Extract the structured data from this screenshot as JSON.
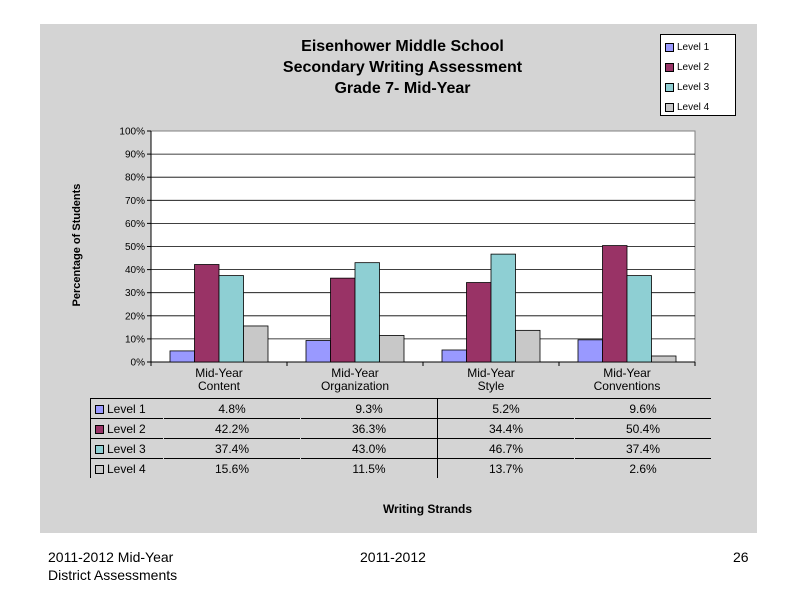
{
  "chart_data": {
    "type": "bar",
    "title": [
      "Eisenhower Middle School",
      "Secondary Writing Assessment",
      "Grade 7- Mid-Year"
    ],
    "ylabel": "Percentage of Students",
    "xlabel": "Writing Strands",
    "ylim": [
      0,
      100
    ],
    "yticks": [
      "0%",
      "10%",
      "20%",
      "30%",
      "40%",
      "50%",
      "60%",
      "70%",
      "80%",
      "90%",
      "100%"
    ],
    "grid": true,
    "legend_position": "top-right",
    "categories": [
      [
        "Mid-Year",
        "Content"
      ],
      [
        "Mid-Year",
        "Organization"
      ],
      [
        "Mid-Year",
        "Style"
      ],
      [
        "Mid-Year",
        "Conventions"
      ]
    ],
    "series": [
      {
        "name": "Level 1",
        "color": "#9999ff",
        "values": [
          4.8,
          9.3,
          5.2,
          9.6
        ],
        "labels": [
          "4.8%",
          "9.3%",
          "5.2%",
          "9.6%"
        ]
      },
      {
        "name": "Level 2",
        "color": "#993366",
        "values": [
          42.2,
          36.3,
          34.4,
          50.4
        ],
        "labels": [
          "42.2%",
          "36.3%",
          "34.4%",
          "50.4%"
        ]
      },
      {
        "name": "Level 3",
        "color": "#8ecfd3",
        "values": [
          37.4,
          43.0,
          46.7,
          37.4
        ],
        "labels": [
          "37.4%",
          "43.0%",
          "46.7%",
          "37.4%"
        ]
      },
      {
        "name": "Level 4",
        "color": "#c8c8c8",
        "values": [
          15.6,
          11.5,
          13.7,
          2.6
        ],
        "labels": [
          "15.6%",
          "11.5%",
          "13.7%",
          "2.6%"
        ]
      }
    ],
    "plot_background": "#ffffff",
    "panel_background": "#d4d4d4"
  },
  "footer": {
    "left_line1": "2011-2012  Mid-Year",
    "left_line2": "District Assessments",
    "center": "2011-2012",
    "page_number": "26"
  }
}
